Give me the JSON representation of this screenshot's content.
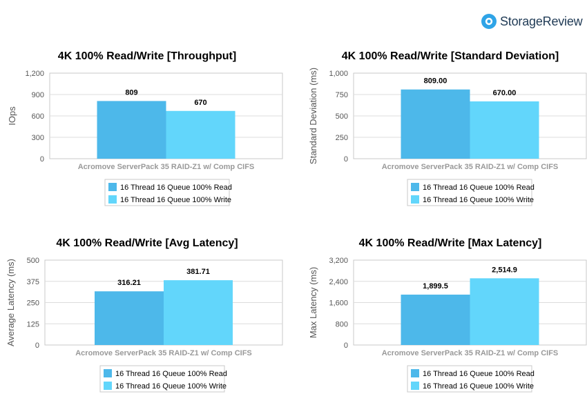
{
  "brand": {
    "name": "StorageReview",
    "logo_color": "#2fa4e7"
  },
  "colors": {
    "read": "#4db8ea",
    "write": "#62d6fb",
    "grid": "#dcdcdc",
    "frame": "#c8c8c8"
  },
  "chart_data": [
    {
      "type": "bar",
      "title": "4K 100% Read/Write [Throughput]",
      "ylabel": "IOps",
      "xlabel": "",
      "categories": [
        "Acromove ServerPack 35 RAID-Z1 w/ Comp CIFS"
      ],
      "ylim": [
        0,
        1200
      ],
      "yticks": [
        "0",
        "300",
        "600",
        "900",
        "1,200"
      ],
      "series": [
        {
          "name": "16 Thread 16 Queue 100% Read",
          "values": [
            809
          ],
          "labels": [
            "809"
          ]
        },
        {
          "name": "16 Thread 16 Queue 100% Write",
          "values": [
            670
          ],
          "labels": [
            "670"
          ]
        }
      ],
      "grid": true,
      "legend": "bottom"
    },
    {
      "type": "bar",
      "title": "4K 100% Read/Write [Standard Deviation]",
      "ylabel": "Standard Deviation (ms)",
      "xlabel": "",
      "categories": [
        "Acromove ServerPack 35 RAID-Z1 w/ Comp CIFS"
      ],
      "ylim": [
        0,
        1000
      ],
      "yticks": [
        "0",
        "250",
        "500",
        "750",
        "1,000"
      ],
      "series": [
        {
          "name": "16 Thread 16 Queue 100% Read",
          "values": [
            809.0
          ],
          "labels": [
            "809.00"
          ]
        },
        {
          "name": "16 Thread 16 Queue 100% Write",
          "values": [
            670.0
          ],
          "labels": [
            "670.00"
          ]
        }
      ],
      "grid": true,
      "legend": "bottom"
    },
    {
      "type": "bar",
      "title": "4K 100% Read/Write [Avg Latency]",
      "ylabel": "Average Latency (ms)",
      "xlabel": "",
      "categories": [
        "Acromove ServerPack 35 RAID-Z1 w/ Comp CIFS"
      ],
      "ylim": [
        0,
        500
      ],
      "yticks": [
        "0",
        "125",
        "250",
        "375",
        "500"
      ],
      "series": [
        {
          "name": "16 Thread 16 Queue 100% Read",
          "values": [
            316.21
          ],
          "labels": [
            "316.21"
          ]
        },
        {
          "name": "16 Thread 16 Queue 100% Write",
          "values": [
            381.71
          ],
          "labels": [
            "381.71"
          ]
        }
      ],
      "grid": true,
      "legend": "bottom"
    },
    {
      "type": "bar",
      "title": "4K 100% Read/Write [Max Latency]",
      "ylabel": "Max Latency (ms)",
      "xlabel": "",
      "categories": [
        "Acromove ServerPack 35 RAID-Z1 w/ Comp CIFS"
      ],
      "ylim": [
        0,
        3200
      ],
      "yticks": [
        "0",
        "800",
        "1,600",
        "2,400",
        "3,200"
      ],
      "series": [
        {
          "name": "16 Thread 16 Queue 100% Read",
          "values": [
            1899.5
          ],
          "labels": [
            "1,899.5"
          ]
        },
        {
          "name": "16 Thread 16 Queue 100% Write",
          "values": [
            2514.9
          ],
          "labels": [
            "2,514.9"
          ]
        }
      ],
      "grid": true,
      "legend": "bottom"
    }
  ]
}
